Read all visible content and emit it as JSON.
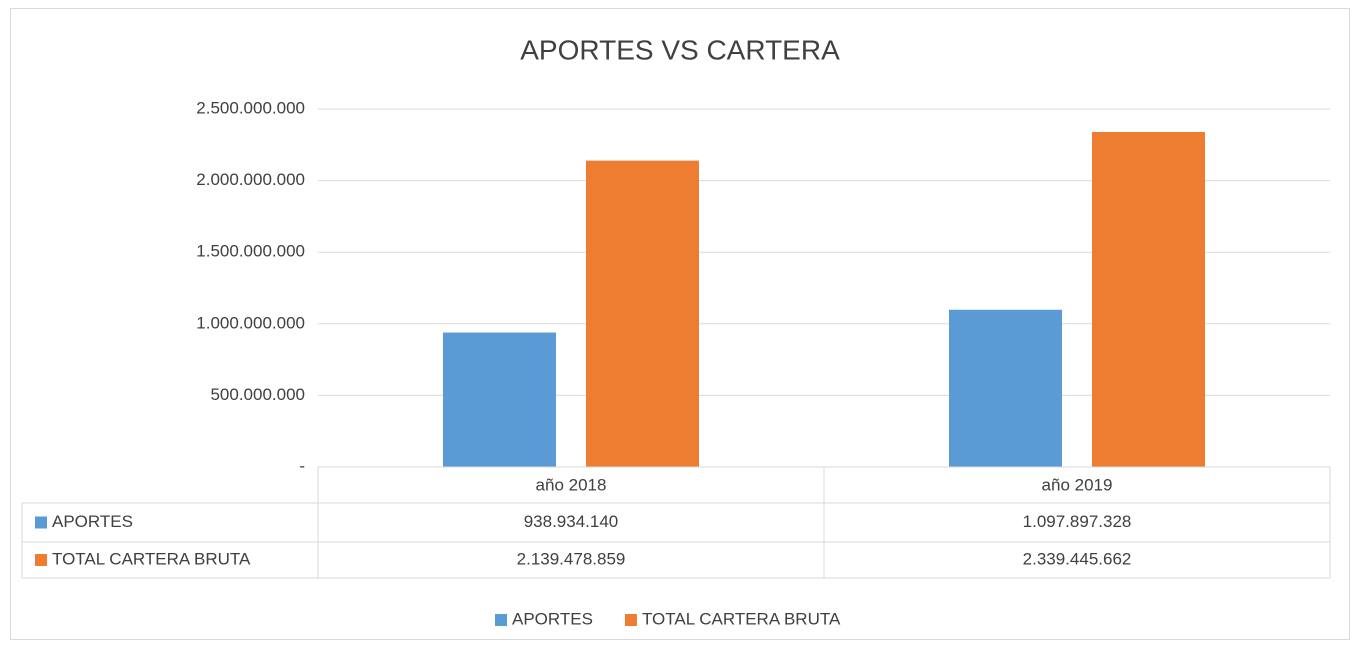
{
  "chart_data": {
    "type": "bar",
    "title": "APORTES VS CARTERA",
    "categories": [
      "año 2018",
      "año 2019"
    ],
    "series": [
      {
        "name": "APORTES",
        "color": "#5b9bd5",
        "values": [
          938934140,
          1097897328
        ],
        "value_labels": [
          "938.934.140",
          "1.097.897.328"
        ]
      },
      {
        "name": "TOTAL CARTERA BRUTA",
        "color": "#ed7d31",
        "values": [
          2139478859,
          2339445662
        ],
        "value_labels": [
          "2.139.478.859",
          "2.339.445.662"
        ]
      }
    ],
    "ylim": [
      0,
      2500000000
    ],
    "yticks": [
      {
        "value": 0,
        "label": "-"
      },
      {
        "value": 500000000,
        "label": "500.000.000"
      },
      {
        "value": 1000000000,
        "label": "1.000.000.000"
      },
      {
        "value": 1500000000,
        "label": "1.500.000.000"
      },
      {
        "value": 2000000000,
        "label": "2.000.000.000"
      },
      {
        "value": 2500000000,
        "label": "2.500.000.000"
      }
    ],
    "grid": true,
    "legend": "bottom",
    "data_table": true
  }
}
